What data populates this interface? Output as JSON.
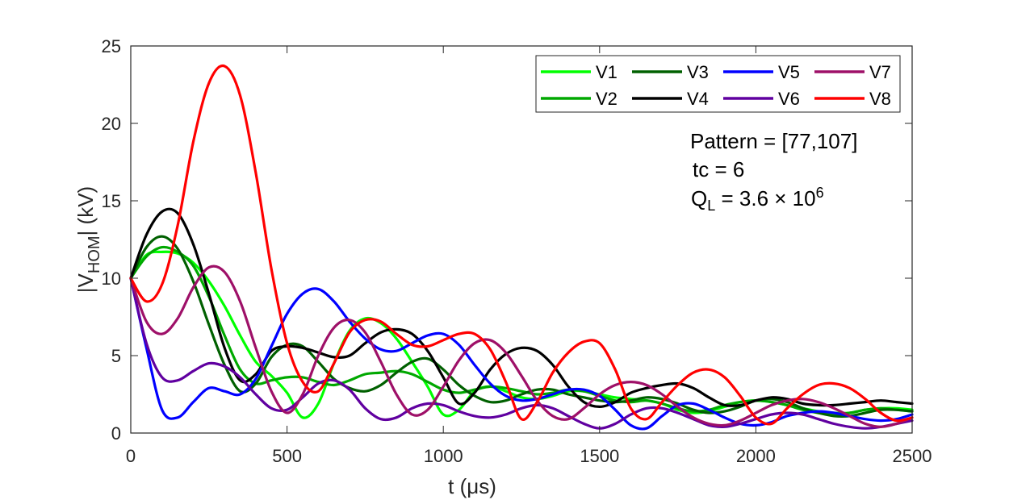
{
  "chart_data": {
    "type": "line",
    "title": "",
    "xlabel": "t (μs)",
    "ylabel_main": "|V",
    "ylabel_sub": "HOM",
    "ylabel_tail": "| (kV)",
    "xlim": [
      0,
      2500
    ],
    "ylim": [
      0,
      25
    ],
    "xticks": [
      "0",
      "500",
      "1000",
      "1500",
      "2000",
      "2500"
    ],
    "yticks": [
      "0",
      "5",
      "10",
      "15",
      "20",
      "25"
    ],
    "grid": false,
    "legend_position": "top-right",
    "annotations": {
      "pattern": "Pattern = [77,107]",
      "tc": "tc  = 6",
      "ql_prefix": "Q",
      "ql_sub": "L",
      "ql_mid": " = 3.6 × 10",
      "ql_sup": "6"
    },
    "series": [
      {
        "name": "V1",
        "color": "#00ff00",
        "x": [
          0,
          50,
          100,
          150,
          200,
          250,
          300,
          350,
          400,
          450,
          500,
          550,
          600,
          650,
          700,
          750,
          800,
          850,
          900,
          950,
          1000,
          1050,
          1100,
          1150,
          1200,
          1250,
          1300,
          1350,
          1400,
          1450,
          1500,
          1550,
          1600,
          1650,
          1700,
          1750,
          1800,
          1850,
          1900,
          1950,
          2000,
          2050,
          2100,
          2150,
          2200,
          2250,
          2300,
          2350,
          2400,
          2450,
          2500
        ],
        "y": [
          10,
          11.5,
          11.7,
          11.6,
          11,
          9.8,
          8.2,
          6.3,
          4.6,
          3.7,
          2.6,
          1.0,
          1.9,
          4.5,
          6.6,
          7.4,
          7.1,
          6.1,
          4.6,
          3.0,
          1.2,
          1.5,
          2.7,
          3.0,
          2.7,
          2.3,
          2.2,
          2.4,
          2.7,
          2.7,
          2.5,
          2.3,
          2.2,
          2.1,
          1.9,
          1.5,
          1.3,
          1.4,
          1.7,
          2.0,
          2.1,
          2.0,
          1.8,
          1.6,
          1.4,
          1.3,
          1.3,
          1.5,
          1.6,
          1.6,
          1.5
        ]
      },
      {
        "name": "V2",
        "color": "#00a800",
        "x": [
          0,
          50,
          100,
          150,
          200,
          250,
          300,
          350,
          400,
          450,
          500,
          550,
          600,
          650,
          700,
          750,
          800,
          850,
          900,
          950,
          1000,
          1050,
          1100,
          1150,
          1200,
          1250,
          1300,
          1350,
          1400,
          1450,
          1500,
          1550,
          1600,
          1650,
          1700,
          1750,
          1800,
          1850,
          1900,
          1950,
          2000,
          2050,
          2100,
          2150,
          2200,
          2250,
          2300,
          2350,
          2400,
          2450,
          2500
        ],
        "y": [
          10,
          11.4,
          12,
          11.7,
          10.8,
          8.8,
          6.3,
          4.1,
          3.2,
          3.4,
          3.6,
          3.6,
          3.3,
          3.1,
          3.4,
          3.8,
          3.9,
          4.0,
          3.8,
          3.3,
          2.8,
          2.6,
          2.8,
          3.0,
          2.9,
          2.7,
          2.5,
          2.6,
          2.8,
          2.7,
          2.4,
          2.1,
          2.0,
          2.1,
          1.9,
          1.6,
          1.4,
          1.5,
          1.8,
          2.0,
          2.1,
          2.0,
          1.8,
          1.5,
          1.3,
          1.2,
          1.3,
          1.5,
          1.6,
          1.5,
          1.4
        ]
      },
      {
        "name": "V3",
        "color": "#006000",
        "x": [
          0,
          50,
          100,
          150,
          200,
          250,
          300,
          350,
          400,
          450,
          500,
          550,
          600,
          650,
          700,
          750,
          800,
          850,
          900,
          950,
          1000,
          1050,
          1100,
          1150,
          1200,
          1250,
          1300,
          1350,
          1400,
          1450,
          1500,
          1550,
          1600,
          1650,
          1700,
          1750,
          1800,
          1850,
          1900,
          1950,
          2000,
          2050,
          2100,
          2150,
          2200,
          2250,
          2300,
          2350,
          2400,
          2450,
          2500
        ],
        "y": [
          10,
          12,
          12.7,
          11.9,
          9.8,
          7.0,
          4.4,
          2.7,
          3.2,
          4.9,
          5.7,
          5.6,
          4.6,
          3.5,
          2.9,
          2.7,
          3.1,
          3.9,
          4.6,
          4.8,
          4.1,
          3.1,
          2.4,
          2.0,
          2.1,
          2.5,
          2.8,
          2.8,
          2.5,
          2.3,
          2.1,
          2.0,
          2.1,
          2.3,
          2.2,
          1.9,
          1.5,
          1.3,
          1.4,
          1.7,
          2.1,
          2.2,
          2.0,
          1.6,
          1.3,
          1.1,
          1.1,
          1.3,
          1.5,
          1.5,
          1.4
        ]
      },
      {
        "name": "V4",
        "color": "#000000",
        "x": [
          0,
          50,
          100,
          150,
          200,
          250,
          300,
          350,
          400,
          450,
          500,
          550,
          600,
          650,
          700,
          750,
          800,
          850,
          900,
          950,
          1000,
          1050,
          1100,
          1150,
          1200,
          1250,
          1300,
          1350,
          1400,
          1450,
          1500,
          1550,
          1600,
          1650,
          1700,
          1750,
          1800,
          1850,
          1900,
          1950,
          2000,
          2050,
          2100,
          2150,
          2200,
          2250,
          2300,
          2350,
          2400,
          2450,
          2500
        ],
        "y": [
          10,
          12.8,
          14.3,
          14.2,
          12.2,
          9.0,
          5.5,
          3.4,
          3.8,
          5.3,
          5.6,
          5.5,
          5.2,
          4.9,
          5.0,
          5.8,
          6.5,
          6.7,
          6.4,
          5.3,
          3.6,
          1.9,
          2.6,
          4.1,
          5.1,
          5.5,
          5.3,
          4.4,
          3.0,
          2.0,
          1.7,
          2.0,
          2.6,
          2.9,
          3.1,
          3.2,
          2.9,
          2.3,
          1.8,
          1.8,
          2.1,
          2.3,
          2.2,
          1.9,
          1.8,
          1.8,
          1.9,
          2.0,
          2.1,
          2.0,
          1.9
        ]
      },
      {
        "name": "V5",
        "color": "#0000ff",
        "x": [
          0,
          50,
          100,
          150,
          200,
          250,
          300,
          350,
          400,
          450,
          500,
          550,
          600,
          650,
          700,
          750,
          800,
          850,
          900,
          950,
          1000,
          1050,
          1100,
          1150,
          1200,
          1250,
          1300,
          1350,
          1400,
          1450,
          1500,
          1550,
          1600,
          1650,
          1700,
          1750,
          1800,
          1850,
          1900,
          1950,
          2000,
          2050,
          2100,
          2150,
          2200,
          2250,
          2300,
          2350,
          2400,
          2450,
          2500
        ],
        "y": [
          10,
          5.5,
          1.5,
          1.0,
          2.0,
          2.9,
          2.7,
          2.5,
          3.5,
          5.6,
          7.7,
          9.0,
          9.3,
          8.5,
          7.2,
          6.1,
          5.4,
          5.3,
          5.8,
          6.3,
          6.4,
          5.7,
          4.4,
          3.2,
          2.4,
          2.1,
          2.2,
          2.5,
          2.8,
          2.8,
          2.4,
          1.5,
          0.5,
          0.3,
          1.1,
          1.8,
          1.9,
          1.5,
          1.0,
          0.6,
          0.5,
          0.7,
          1.1,
          1.3,
          1.4,
          1.3,
          1.1,
          0.9,
          0.8,
          0.9,
          1.2
        ]
      },
      {
        "name": "V6",
        "color": "#6000a0",
        "x": [
          0,
          50,
          100,
          150,
          200,
          250,
          300,
          350,
          400,
          450,
          500,
          550,
          600,
          650,
          700,
          750,
          800,
          850,
          900,
          950,
          1000,
          1050,
          1100,
          1150,
          1200,
          1250,
          1300,
          1350,
          1400,
          1450,
          1500,
          1550,
          1600,
          1650,
          1700,
          1750,
          1800,
          1850,
          1900,
          1950,
          2000,
          2050,
          2100,
          2150,
          2200,
          2250,
          2300,
          2350,
          2400,
          2450,
          2500
        ],
        "y": [
          10,
          5.8,
          3.6,
          3.4,
          4.0,
          4.5,
          4.3,
          3.6,
          2.5,
          1.6,
          1.5,
          2.3,
          3.2,
          3.4,
          2.8,
          1.6,
          0.9,
          1.0,
          1.6,
          1.9,
          1.8,
          1.4,
          1.1,
          1.0,
          1.2,
          1.6,
          1.8,
          1.6,
          1.1,
          0.6,
          0.3,
          0.6,
          1.2,
          1.6,
          1.6,
          1.3,
          0.9,
          0.5,
          0.4,
          0.6,
          0.9,
          1.2,
          1.3,
          1.2,
          0.9,
          0.6,
          0.4,
          0.3,
          0.4,
          0.6,
          0.8
        ]
      },
      {
        "name": "V7",
        "color": "#9e1068",
        "x": [
          0,
          50,
          100,
          150,
          200,
          250,
          300,
          350,
          400,
          450,
          500,
          550,
          600,
          650,
          700,
          750,
          800,
          850,
          900,
          950,
          1000,
          1050,
          1100,
          1150,
          1200,
          1250,
          1300,
          1350,
          1400,
          1450,
          1500,
          1550,
          1600,
          1650,
          1700,
          1750,
          1800,
          1850,
          1900,
          1950,
          2000,
          2050,
          2100,
          2150,
          2200,
          2250,
          2300,
          2350,
          2400,
          2450,
          2500
        ],
        "y": [
          10,
          7.2,
          6.4,
          7.4,
          9.4,
          10.7,
          10.4,
          8.5,
          5.5,
          2.7,
          1.3,
          2.5,
          5.0,
          6.8,
          7.3,
          6.5,
          4.6,
          2.5,
          1.2,
          1.5,
          3.0,
          4.7,
          5.8,
          6.0,
          5.2,
          3.7,
          2.1,
          1.1,
          0.9,
          1.6,
          2.5,
          3.1,
          3.3,
          3.1,
          2.5,
          1.7,
          1.0,
          0.6,
          0.5,
          0.8,
          1.3,
          1.8,
          2.1,
          2.2,
          2.0,
          1.6,
          1.1,
          0.6,
          0.4,
          0.6,
          1.0
        ]
      },
      {
        "name": "V8",
        "color": "#ff0000",
        "x": [
          0,
          50,
          100,
          150,
          200,
          250,
          300,
          350,
          400,
          450,
          500,
          550,
          600,
          650,
          700,
          750,
          800,
          850,
          900,
          950,
          1000,
          1050,
          1100,
          1150,
          1200,
          1250,
          1300,
          1350,
          1400,
          1450,
          1500,
          1550,
          1600,
          1650,
          1700,
          1750,
          1800,
          1850,
          1900,
          1950,
          2000,
          2050,
          2100,
          2150,
          2200,
          2250,
          2300,
          2350,
          2400,
          2450,
          2500
        ],
        "y": [
          10,
          8.5,
          9.6,
          13.4,
          18.8,
          22.6,
          23.7,
          21.8,
          16.8,
          10.6,
          5.8,
          3.3,
          2.7,
          4.5,
          6.5,
          7.3,
          7.2,
          6.4,
          5.7,
          5.6,
          6.0,
          6.4,
          6.4,
          5.4,
          3.3,
          0.9,
          2.0,
          3.9,
          5.2,
          5.9,
          5.8,
          4.1,
          1.6,
          0.9,
          2.0,
          3.1,
          3.9,
          4.1,
          3.6,
          2.4,
          1.0,
          0.6,
          1.6,
          2.5,
          3.1,
          3.2,
          2.9,
          2.2,
          1.3,
          0.8,
          1.0
        ]
      }
    ]
  }
}
